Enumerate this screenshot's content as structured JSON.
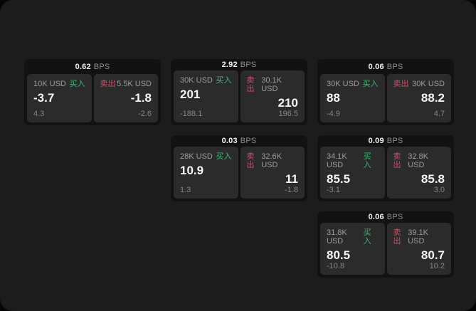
{
  "labels": {
    "bps_unit": "BPS",
    "buy": "买入",
    "sell": "卖出"
  },
  "colors": {
    "buy": "#3bb873",
    "sell": "#c9506a"
  },
  "cards": [
    {
      "bps": "0.62",
      "buy": {
        "notional": "10K USD",
        "price": "-3.7",
        "sub": "4.3"
      },
      "sell": {
        "notional": "5.5K USD",
        "price": "-1.8",
        "sub": "-2.6"
      }
    },
    {
      "bps": "2.92",
      "buy": {
        "notional": "30K USD",
        "price": "201",
        "sub": "-188.1"
      },
      "sell": {
        "notional": "30.1K USD",
        "price": "210",
        "sub": "196.5"
      }
    },
    {
      "bps": "0.06",
      "buy": {
        "notional": "30K USD",
        "price": "88",
        "sub": "-4.9"
      },
      "sell": {
        "notional": "30K USD",
        "price": "88.2",
        "sub": "4.7"
      }
    },
    {
      "bps": "0.03",
      "buy": {
        "notional": "28K USD",
        "price": "10.9",
        "sub": "1.3"
      },
      "sell": {
        "notional": "32.6K USD",
        "price": "11",
        "sub": "-1.8"
      }
    },
    {
      "bps": "0.09",
      "buy": {
        "notional": "34.1K USD",
        "price": "85.5",
        "sub": "-3.1"
      },
      "sell": {
        "notional": "32.8K USD",
        "price": "85.8",
        "sub": "3.0"
      }
    },
    {
      "bps": "0.06",
      "buy": {
        "notional": "31.8K USD",
        "price": "80.5",
        "sub": "-10.8"
      },
      "sell": {
        "notional": "39.1K USD",
        "price": "80.7",
        "sub": "10.2"
      }
    }
  ]
}
